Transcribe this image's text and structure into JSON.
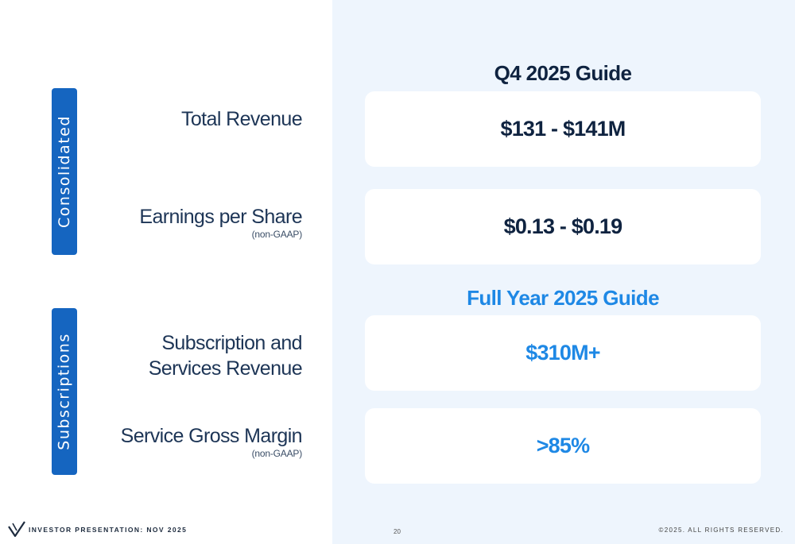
{
  "colors": {
    "dark_navy": "#0f2340",
    "brand_blue": "#1e88e5",
    "tab_blue": "#1565c0",
    "panel_bg": "#eef5fd"
  },
  "sections": {
    "consolidated": "Consolidated",
    "subscriptions": "Subscriptions"
  },
  "metrics": {
    "total_revenue": {
      "name": "Total Revenue"
    },
    "eps": {
      "name": "Earnings per Share",
      "sub": "(non-GAAP)"
    },
    "subscription_rev": {
      "line1": "Subscription and",
      "line2": "Services Revenue"
    },
    "service_margin": {
      "name": "Service Gross Margin",
      "sub": "(non-GAAP)"
    }
  },
  "guides": {
    "q4_title": "Q4 2025 Guide",
    "fy_title": "Full Year 2025 Guide",
    "total_revenue_value": "$131 - $141M",
    "eps_value": "$0.13 - $0.19",
    "subscription_rev_value": "$310M+",
    "service_margin_value": ">85%"
  },
  "footer": {
    "logo_icon": "company-logo-icon",
    "presentation_label": "INVESTOR PRESENTATION: NOV 2025",
    "page_number": "20",
    "copyright": "©2025.  ALL RIGHTS RESERVED."
  }
}
